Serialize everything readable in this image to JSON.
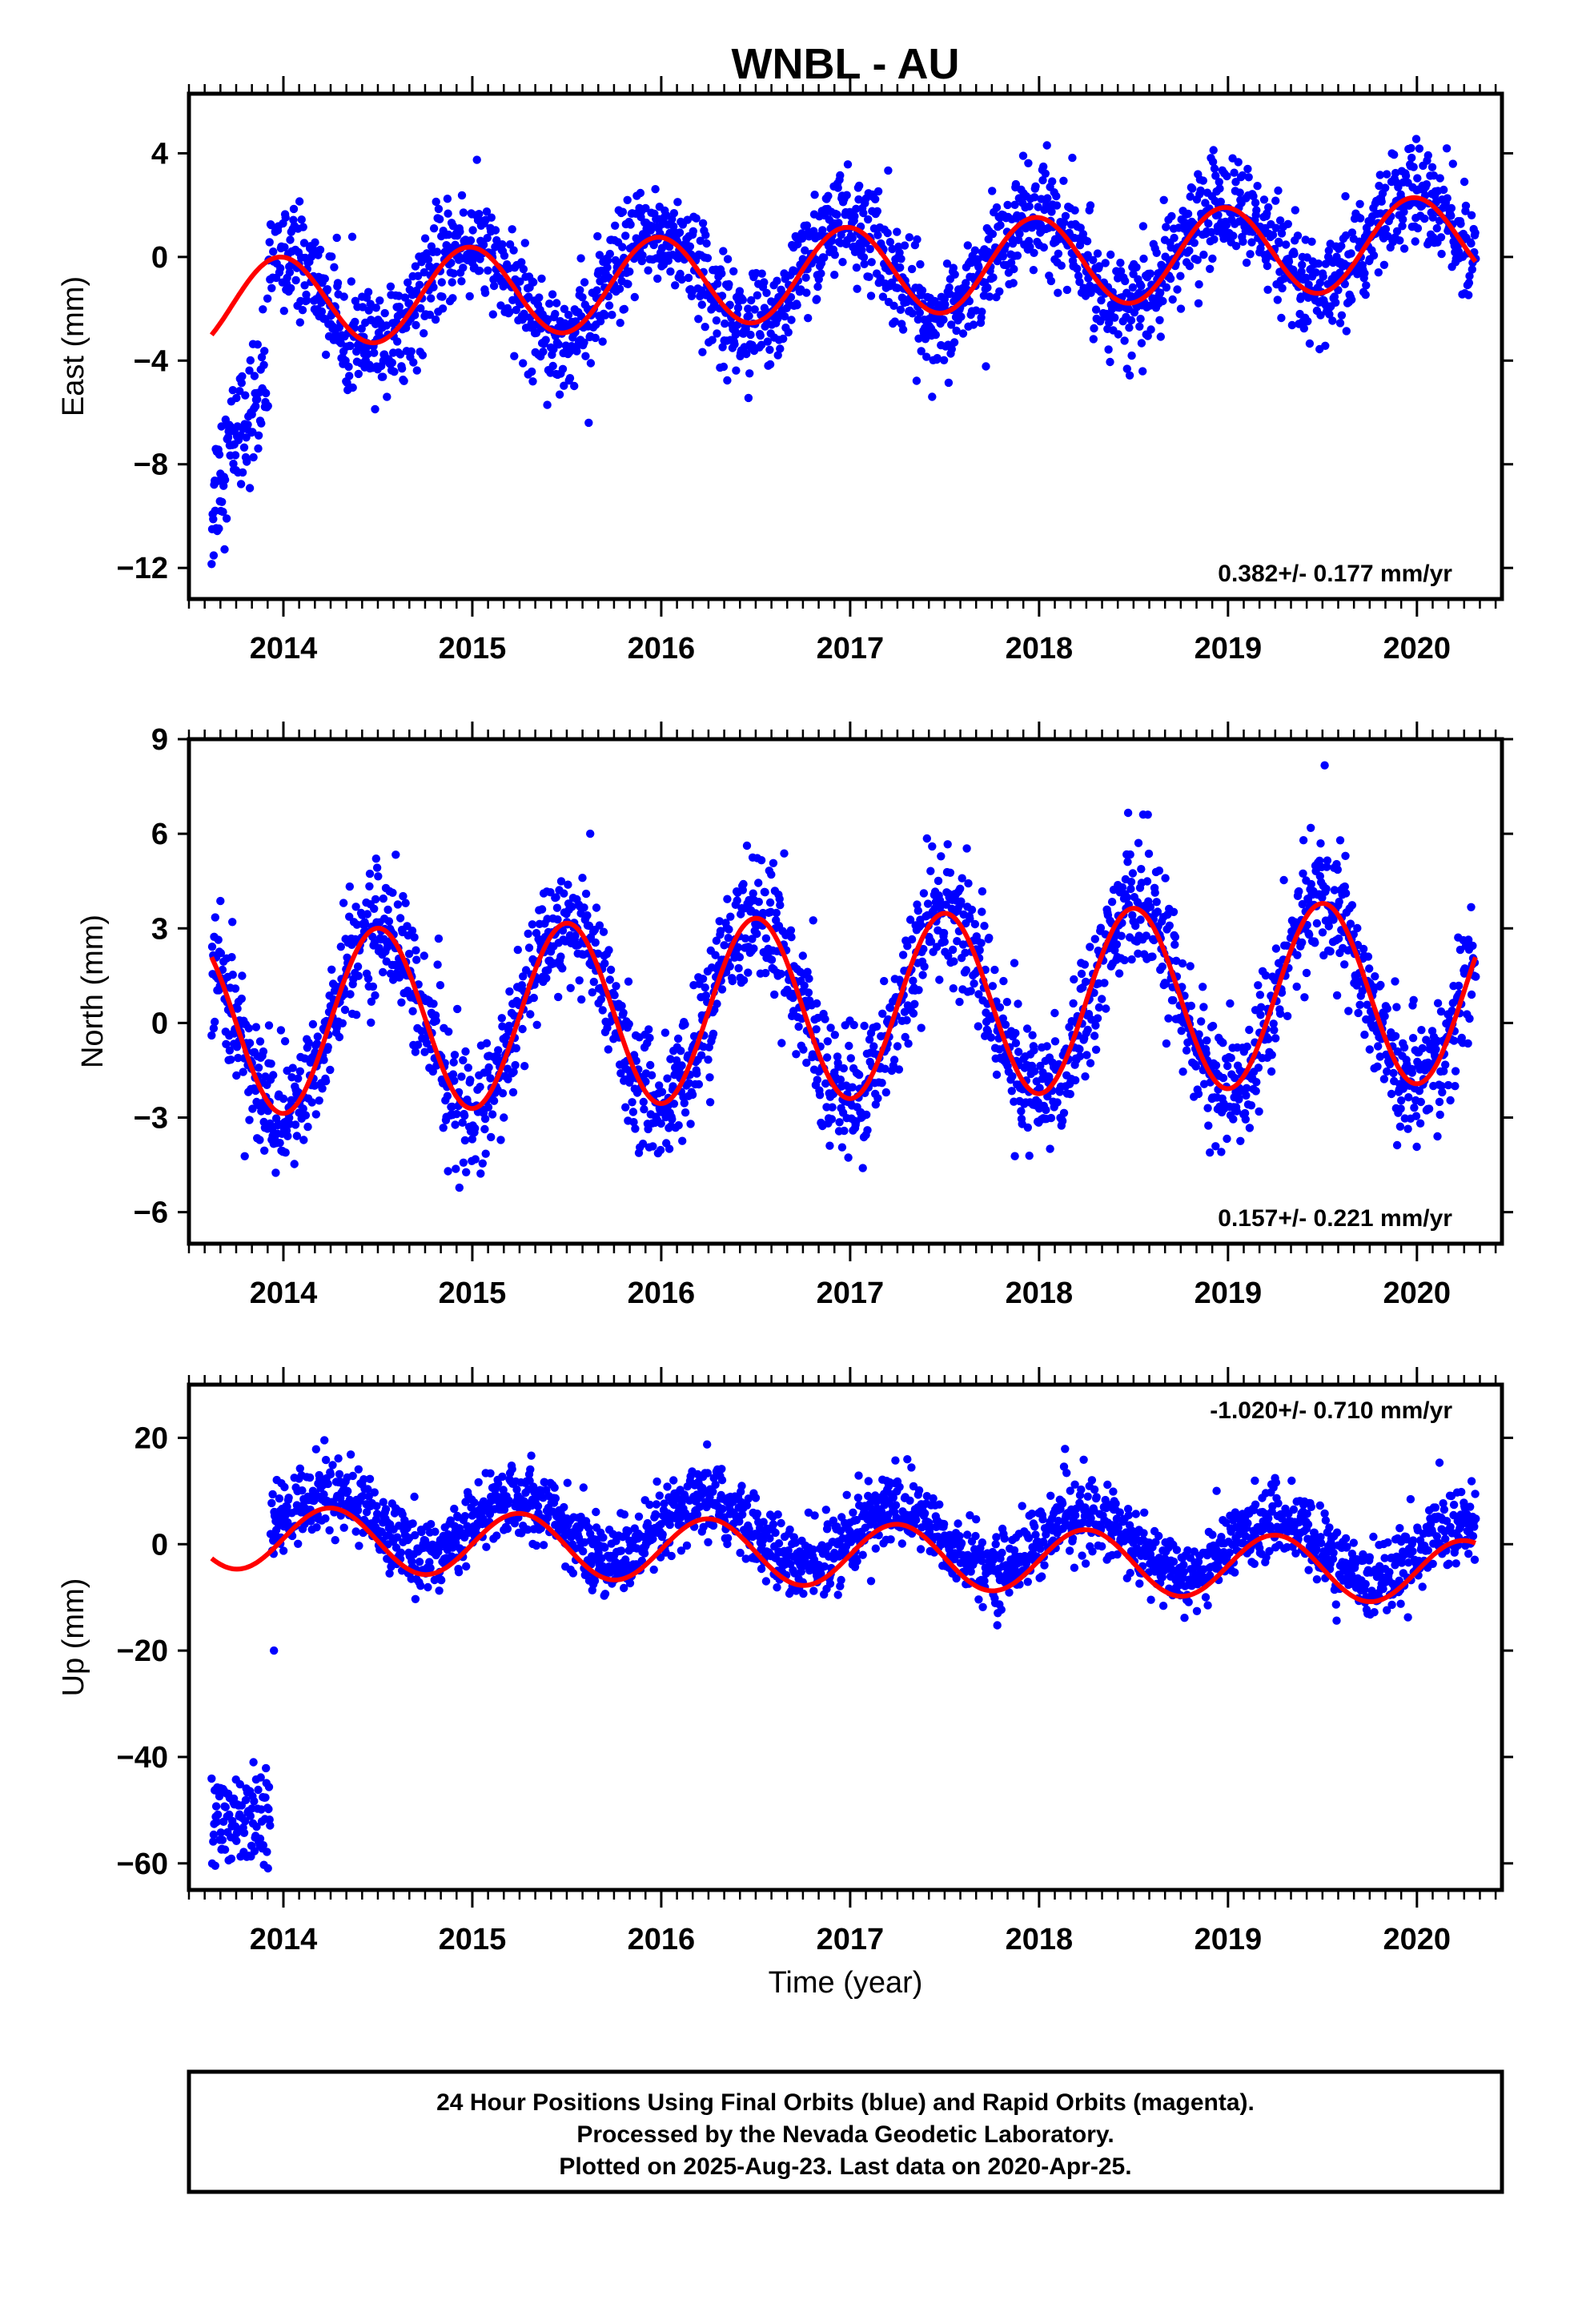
{
  "title": "WNBL - AU",
  "xlabel": "Time (year)",
  "footer": [
    "24 Hour Positions Using Final Orbits (blue) and Rapid Orbits (magenta).",
    "Processed by the Nevada Geodetic Laboratory.",
    "Plotted on 2025-Aug-23. Last data on 2020-Apr-25."
  ],
  "colors": {
    "points": "#0000ff",
    "fit": "#ff0000",
    "frame": "#000000"
  },
  "chart_data": [
    {
      "type": "scatter",
      "component": "East",
      "ylabel": "East (mm)",
      "rate": "0.382+/- 0.177 mm/yr",
      "rate_position": "bottom-right",
      "xlim": [
        2013.5,
        2020.45
      ],
      "ylim": [
        -13.2,
        6.3
      ],
      "yticks": [
        -12,
        -8,
        -4,
        0,
        4
      ],
      "xticks": [
        2014,
        2015,
        2016,
        2017,
        2018,
        2019,
        2020
      ],
      "data_start": 2013.62,
      "data_end": 2020.31,
      "series": [
        {
          "name": "Final Orbits",
          "description": "daily positions",
          "color": "#0000ff",
          "approx_model": {
            "offset": -0.6,
            "trend_mm_per_yr": 0.382,
            "annual_amp": 1.9,
            "annual_peak": 2013.98,
            "scatter": 1.0,
            "early_segment": {
              "end": 2013.92,
              "start_value": -10.5,
              "end_value": -5.0
            }
          }
        },
        {
          "name": "Fit",
          "description": "trend + seasonal model",
          "color": "#ff0000",
          "approx_model": {
            "offset": -0.6,
            "trend_mm_per_yr": 0.382,
            "annual_amp": 1.75,
            "annual_peak": 2013.98
          }
        }
      ]
    },
    {
      "type": "scatter",
      "component": "North",
      "ylabel": "North (mm)",
      "rate": "0.157+/- 0.221 mm/yr",
      "rate_position": "bottom-right",
      "xlim": [
        2013.5,
        2020.45
      ],
      "ylim": [
        -7.0,
        9.0
      ],
      "yticks": [
        -6,
        -3,
        0,
        3,
        6,
        9
      ],
      "xticks": [
        2014,
        2015,
        2016,
        2017,
        2018,
        2019,
        2020
      ],
      "data_start": 2013.62,
      "data_end": 2020.31,
      "series": [
        {
          "name": "Final Orbits",
          "description": "daily positions",
          "color": "#0000ff",
          "approx_model": {
            "offset": 0.5,
            "trend_mm_per_yr": 0.157,
            "annual_amp": 3.0,
            "annual_peak": 2014.5,
            "scatter": 1.0
          }
        },
        {
          "name": "Fit",
          "description": "trend + seasonal model",
          "color": "#ff0000",
          "approx_model": {
            "offset": 0.5,
            "trend_mm_per_yr": 0.157,
            "annual_amp": 2.9,
            "annual_peak": 2014.5
          }
        }
      ]
    },
    {
      "type": "scatter",
      "component": "Up",
      "ylabel": "Up (mm)",
      "rate": "-1.020+/- 0.710 mm/yr",
      "rate_position": "top-right",
      "xlim": [
        2013.5,
        2020.45
      ],
      "ylim": [
        -65,
        30
      ],
      "yticks": [
        -60,
        -40,
        -20,
        0,
        20
      ],
      "xticks": [
        2014,
        2015,
        2016,
        2017,
        2018,
        2019,
        2020
      ],
      "data_start": 2013.62,
      "data_end": 2020.31,
      "series": [
        {
          "name": "Final Orbits",
          "description": "daily positions",
          "color": "#0000ff",
          "approx_model": {
            "offset": 1.5,
            "trend_mm_per_yr": -1.02,
            "annual_amp": 5.5,
            "annual_peak": 2014.25,
            "scatter": 3.5,
            "early_segment": {
              "end": 2013.93,
              "start_value": -52.0,
              "end_value": -52.0,
              "outlier": [
                2013.95,
                -20
              ]
            }
          }
        },
        {
          "name": "Fit",
          "description": "trend + seasonal model",
          "color": "#ff0000",
          "approx_model": {
            "offset": -2.0,
            "trend_mm_per_yr": -1.02,
            "annual_amp": 6.0,
            "annual_peak": 2014.25
          }
        }
      ]
    }
  ]
}
